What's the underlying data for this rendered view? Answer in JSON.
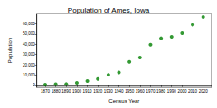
{
  "chart_data": {
    "type": "scatter",
    "title": "Population of Ames, Iowa",
    "x_label": "Census Year",
    "y_label": "Population",
    "x": [
      1870,
      1880,
      1890,
      1900,
      1910,
      1920,
      1930,
      1940,
      1950,
      1960,
      1970,
      1980,
      1990,
      2000,
      2010,
      2020
    ],
    "values": [
      636,
      1153,
      1276,
      2422,
      4223,
      6270,
      10261,
      12555,
      22898,
      27003,
      39505,
      45775,
      47198,
      50731,
      58965,
      66427
    ],
    "color": "#008000",
    "marker": "circle",
    "xlim": [
      1862,
      2028
    ],
    "xticks": [
      1870,
      1880,
      1890,
      1900,
      1910,
      1920,
      1930,
      1940,
      1950,
      1960,
      1970,
      1980,
      1990,
      2000,
      2010,
      2020
    ],
    "ylim": [
      -2000,
      70000
    ],
    "yticks": [
      0,
      {
        "value": 10000,
        "label": "10,000"
      },
      {
        "value": 20000,
        "label": "20,000"
      },
      {
        "value": 30000,
        "label": "30,000"
      },
      {
        "value": 40000,
        "label": "40,000"
      },
      {
        "value": 50000,
        "label": "50,000"
      },
      {
        "value": 60000,
        "label": "60,000"
      }
    ],
    "grid": false
  }
}
